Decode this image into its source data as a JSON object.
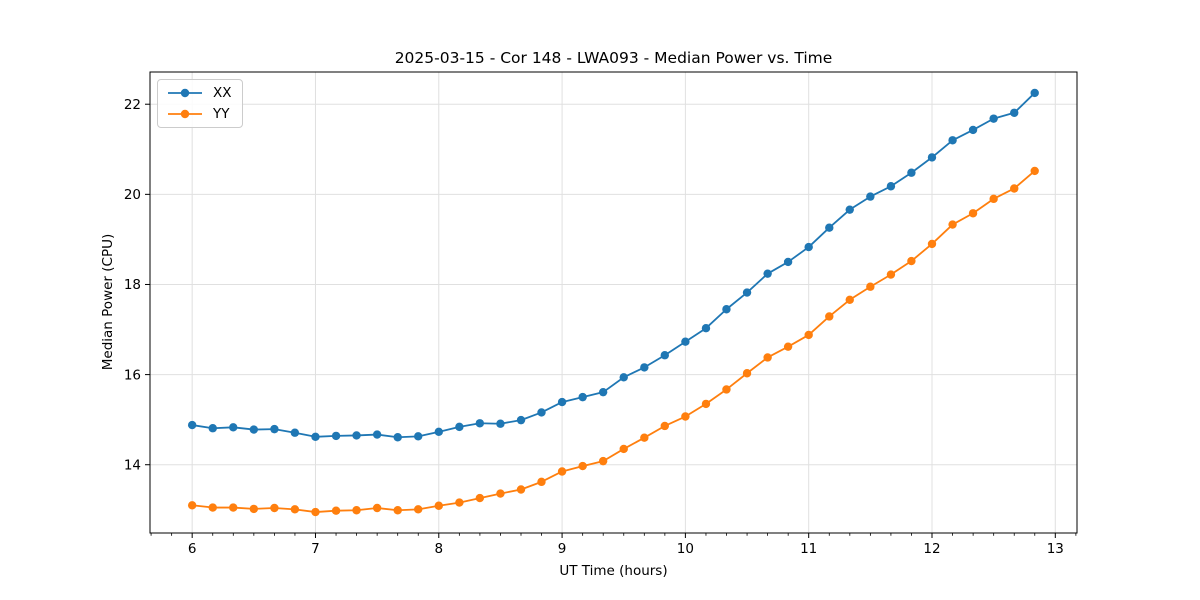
{
  "chart_data": {
    "type": "line",
    "title": "2025-03-15 - Cor 148 - LWA093 - Median Power vs. Time",
    "xlabel": "UT Time (hours)",
    "ylabel": "Median Power (CPU)",
    "grid": true,
    "legend_position": "upper left",
    "xlim": [
      5.658,
      13.176
    ],
    "ylim": [
      12.485,
      22.715
    ],
    "x_ticks": [
      6,
      7,
      8,
      9,
      10,
      11,
      12,
      13
    ],
    "y_ticks": [
      14,
      16,
      18,
      20,
      22
    ],
    "x_minor_step": 0.16667,
    "x": [
      6.0,
      6.167,
      6.333,
      6.5,
      6.667,
      6.833,
      7.0,
      7.167,
      7.333,
      7.5,
      7.667,
      7.833,
      8.0,
      8.167,
      8.333,
      8.5,
      8.667,
      8.833,
      9.0,
      9.167,
      9.333,
      9.5,
      9.667,
      9.833,
      10.0,
      10.167,
      10.333,
      10.5,
      10.667,
      10.833,
      11.0,
      11.167,
      11.333,
      11.5,
      11.667,
      11.833,
      12.0,
      12.167,
      12.333,
      12.5,
      12.667,
      12.833
    ],
    "series": [
      {
        "name": "XX",
        "color": "#1f77b4",
        "values": [
          14.88,
          14.81,
          14.83,
          14.78,
          14.79,
          14.71,
          14.62,
          14.64,
          14.65,
          14.67,
          14.61,
          14.63,
          14.73,
          14.84,
          14.92,
          14.91,
          14.99,
          15.16,
          15.39,
          15.5,
          15.61,
          15.94,
          16.16,
          16.43,
          16.73,
          17.03,
          17.45,
          17.82,
          18.24,
          18.5,
          18.83,
          19.26,
          19.66,
          19.95,
          20.18,
          20.48,
          20.82,
          21.2,
          21.43,
          21.68,
          21.81,
          22.25
        ]
      },
      {
        "name": "YY",
        "color": "#ff7f0e",
        "values": [
          13.1,
          13.05,
          13.05,
          13.02,
          13.04,
          13.01,
          12.95,
          12.98,
          12.99,
          13.04,
          12.99,
          13.01,
          13.09,
          13.16,
          13.26,
          13.36,
          13.45,
          13.62,
          13.85,
          13.97,
          14.08,
          14.35,
          14.6,
          14.86,
          15.07,
          15.35,
          15.67,
          16.03,
          16.38,
          16.62,
          16.88,
          17.29,
          17.66,
          17.95,
          18.22,
          18.52,
          18.9,
          19.33,
          19.58,
          19.9,
          20.13,
          20.52
        ]
      }
    ],
    "colors": {
      "background": "#ffffff",
      "grid": "#e0e0e0",
      "spine": "#000000",
      "tick_text": "#000000"
    }
  }
}
